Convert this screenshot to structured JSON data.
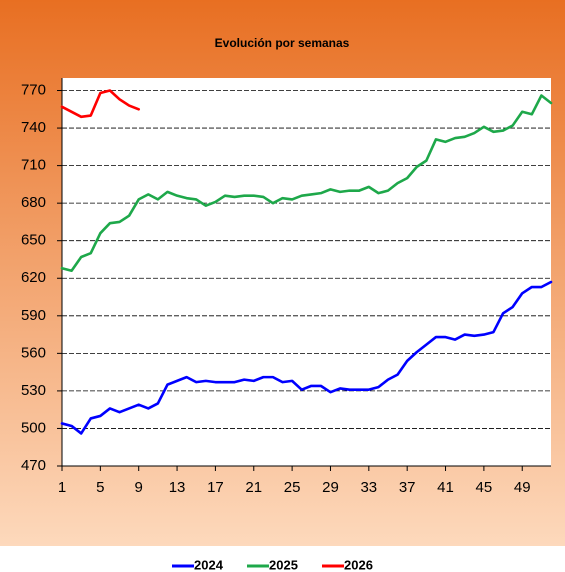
{
  "chart_data": {
    "type": "line",
    "title": "Evolución por semanas",
    "x": [
      1,
      2,
      3,
      4,
      5,
      6,
      7,
      8,
      9,
      10,
      11,
      12,
      13,
      14,
      15,
      16,
      17,
      18,
      19,
      20,
      21,
      22,
      23,
      24,
      25,
      26,
      27,
      28,
      29,
      30,
      31,
      32,
      33,
      34,
      35,
      36,
      37,
      38,
      39,
      40,
      41,
      42,
      43,
      44,
      45,
      46,
      47,
      48,
      49,
      50,
      51,
      52
    ],
    "xlim": [
      1,
      52
    ],
    "xticks": [
      1,
      5,
      9,
      13,
      17,
      21,
      25,
      29,
      33,
      37,
      41,
      45,
      49
    ],
    "ylim": [
      470,
      780
    ],
    "yticks": [
      470,
      500,
      530,
      560,
      590,
      620,
      650,
      680,
      710,
      740,
      770
    ],
    "grid": true,
    "series": [
      {
        "name": "2024",
        "color": "#0000ff",
        "values": [
          504,
          502,
          496,
          508,
          510,
          516,
          513,
          516,
          519,
          516,
          520,
          535,
          538,
          541,
          537,
          538,
          537,
          537,
          537,
          539,
          538,
          541,
          541,
          537,
          538,
          531,
          534,
          534,
          529,
          532,
          531,
          531,
          531,
          533,
          539,
          543,
          554,
          561,
          567,
          573,
          573,
          571,
          575,
          574,
          575,
          577,
          592,
          597,
          608,
          613,
          613,
          617
        ]
      },
      {
        "name": "2025",
        "color": "#1ea84a",
        "values": [
          628,
          626,
          637,
          640,
          656,
          664,
          665,
          670,
          683,
          687,
          683,
          689,
          686,
          684,
          683,
          678,
          681,
          686,
          685,
          686,
          686,
          685,
          680,
          684,
          683,
          686,
          687,
          688,
          691,
          689,
          690,
          690,
          693,
          688,
          690,
          696,
          700,
          709,
          714,
          731,
          729,
          732,
          733,
          736,
          741,
          737,
          738,
          742,
          753,
          751,
          766,
          760
        ]
      },
      {
        "name": "2026",
        "color": "#ff0000",
        "values": [
          757,
          753,
          749,
          750,
          768,
          770,
          763,
          758,
          755,
          null,
          null,
          null,
          null,
          null,
          null,
          null,
          null,
          null,
          null,
          null,
          null,
          null,
          null,
          null,
          null,
          null,
          null,
          null,
          null,
          null,
          null,
          null,
          null,
          null,
          null,
          null,
          null,
          null,
          null,
          null,
          null,
          null,
          null,
          null,
          null,
          null,
          null,
          null,
          null,
          null,
          null,
          null
        ]
      }
    ]
  }
}
